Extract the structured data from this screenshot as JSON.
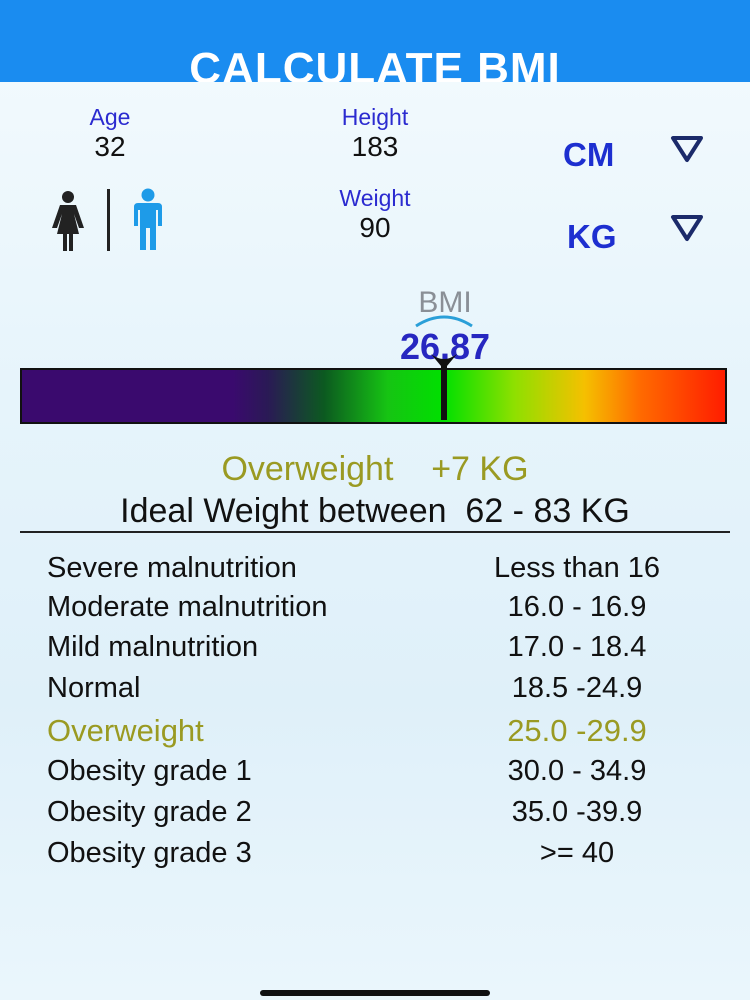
{
  "header": {
    "title": "CALCULATE BMI"
  },
  "inputs": {
    "age": {
      "label": "Age",
      "value": "32"
    },
    "height": {
      "label": "Height",
      "value": "183",
      "unit": "CM"
    },
    "weight": {
      "label": "Weight",
      "value": "90",
      "unit": "KG"
    }
  },
  "gender": {
    "selected": "male",
    "female_color": "#222222",
    "male_color": "#1e9be8"
  },
  "result": {
    "bmi_label": "BMI",
    "bmi_value": "26.87",
    "status": "Overweight",
    "delta": "+7 KG",
    "ideal_text": "Ideal Weight between",
    "ideal_range": "62 - 83 KG"
  },
  "categories": [
    {
      "name": "Severe malnutrition",
      "range": "Less than 16"
    },
    {
      "name": "Moderate malnutrition",
      "range": "16.0 - 16.9"
    },
    {
      "name": "Mild malnutrition",
      "range": "17.0 - 18.4"
    },
    {
      "name": "Normal",
      "range": "18.5 -24.9"
    },
    {
      "name": "Overweight",
      "range": "25.0 -29.9",
      "highlight": true
    },
    {
      "name": "Obesity grade 1",
      "range": "30.0 - 34.9"
    },
    {
      "name": "Obesity grade 2",
      "range": "35.0 -39.9"
    },
    {
      "name": "Obesity grade 3",
      "range": ">= 40"
    }
  ],
  "colors": {
    "header": "#1a8cf0",
    "accent_text": "#2b2bd0",
    "highlight": "#9a9a22"
  }
}
